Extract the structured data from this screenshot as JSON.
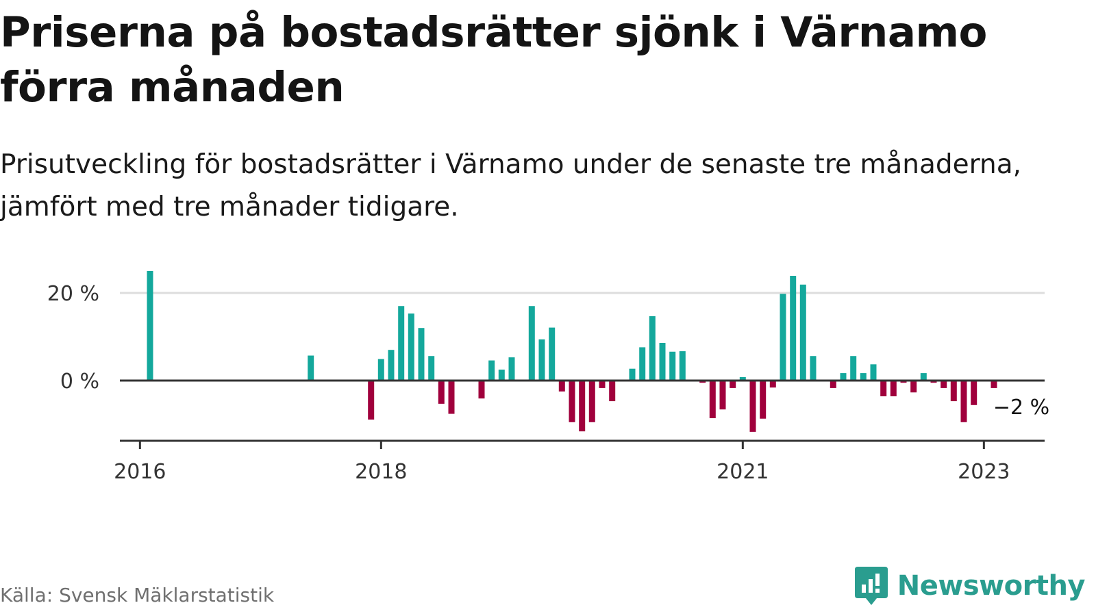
{
  "title": "Priserna på bostadsrätter sjönk i Värnamo förra månaden",
  "subtitle": "Prisutveckling för bostadsrätter i Värnamo under de senaste tre månaderna, jämfört med tre månader tidigare.",
  "source": "Källa: Svensk Mäklarstatistik",
  "brand": "Newsworthy",
  "colors": {
    "positive": "#14a89c",
    "negative": "#a0003c",
    "grid": "#dddddd",
    "axis": "#333333",
    "brand": "#2a9d8f"
  },
  "chart_data": {
    "type": "bar",
    "y_unit": "%",
    "ylim": [
      -14,
      26
    ],
    "y_ticks": [
      0,
      20
    ],
    "y_tick_labels": [
      "0 %",
      "20 %"
    ],
    "x_ticks": [
      "2016",
      "2018",
      "2021",
      "2023"
    ],
    "annotation": "−2 %",
    "grid": true,
    "series": [
      {
        "values": [
          {
            "x": "2016-02",
            "y": 25
          },
          {
            "x": "2017-06",
            "y": 5.7
          },
          {
            "x": "2017-12",
            "y": -8.9
          },
          {
            "x": "2018-01",
            "y": 4.9
          },
          {
            "x": "2018-02",
            "y": 7
          },
          {
            "x": "2018-03",
            "y": 17
          },
          {
            "x": "2018-04",
            "y": 15.3
          },
          {
            "x": "2018-05",
            "y": 12
          },
          {
            "x": "2018-06",
            "y": 5.6
          },
          {
            "x": "2018-07",
            "y": -5.3
          },
          {
            "x": "2018-08",
            "y": -7.6
          },
          {
            "x": "2018-11",
            "y": -4.1
          },
          {
            "x": "2018-12",
            "y": 4.6
          },
          {
            "x": "2019-01",
            "y": 2.5
          },
          {
            "x": "2019-02",
            "y": 5.3
          },
          {
            "x": "2019-04",
            "y": 17
          },
          {
            "x": "2019-05",
            "y": 9.4
          },
          {
            "x": "2019-06",
            "y": 12.1
          },
          {
            "x": "2019-07",
            "y": -2.5
          },
          {
            "x": "2019-08",
            "y": -9.5
          },
          {
            "x": "2019-09",
            "y": -11.6
          },
          {
            "x": "2019-10",
            "y": -9.5
          },
          {
            "x": "2019-11",
            "y": -1.7
          },
          {
            "x": "2019-12",
            "y": -4.7
          },
          {
            "x": "2020-02",
            "y": 2.7
          },
          {
            "x": "2020-03",
            "y": 7.6
          },
          {
            "x": "2020-04",
            "y": 14.7
          },
          {
            "x": "2020-05",
            "y": 8.6
          },
          {
            "x": "2020-06",
            "y": 6.6
          },
          {
            "x": "2020-07",
            "y": 6.7
          },
          {
            "x": "2020-09",
            "y": -0.5
          },
          {
            "x": "2020-10",
            "y": -8.6
          },
          {
            "x": "2020-11",
            "y": -6.6
          },
          {
            "x": "2020-12",
            "y": -1.7
          },
          {
            "x": "2021-01",
            "y": 0.8
          },
          {
            "x": "2021-02",
            "y": -11.7
          },
          {
            "x": "2021-03",
            "y": -8.7
          },
          {
            "x": "2021-04",
            "y": -1.6
          },
          {
            "x": "2021-05",
            "y": 19.8
          },
          {
            "x": "2021-06",
            "y": 23.9
          },
          {
            "x": "2021-07",
            "y": 21.9
          },
          {
            "x": "2021-08",
            "y": 5.6
          },
          {
            "x": "2021-10",
            "y": -1.7
          },
          {
            "x": "2021-11",
            "y": 1.7
          },
          {
            "x": "2021-12",
            "y": 5.6
          },
          {
            "x": "2022-01",
            "y": 1.7
          },
          {
            "x": "2022-02",
            "y": 3.7
          },
          {
            "x": "2022-03",
            "y": -3.6
          },
          {
            "x": "2022-04",
            "y": -3.6
          },
          {
            "x": "2022-05",
            "y": -0.5
          },
          {
            "x": "2022-06",
            "y": -2.7
          },
          {
            "x": "2022-07",
            "y": 1.7
          },
          {
            "x": "2022-08",
            "y": -0.5
          },
          {
            "x": "2022-09",
            "y": -1.7
          },
          {
            "x": "2022-10",
            "y": -4.7
          },
          {
            "x": "2022-11",
            "y": -9.5
          },
          {
            "x": "2022-12",
            "y": -5.6
          },
          {
            "x": "2023-02",
            "y": -1.7
          }
        ]
      }
    ]
  }
}
